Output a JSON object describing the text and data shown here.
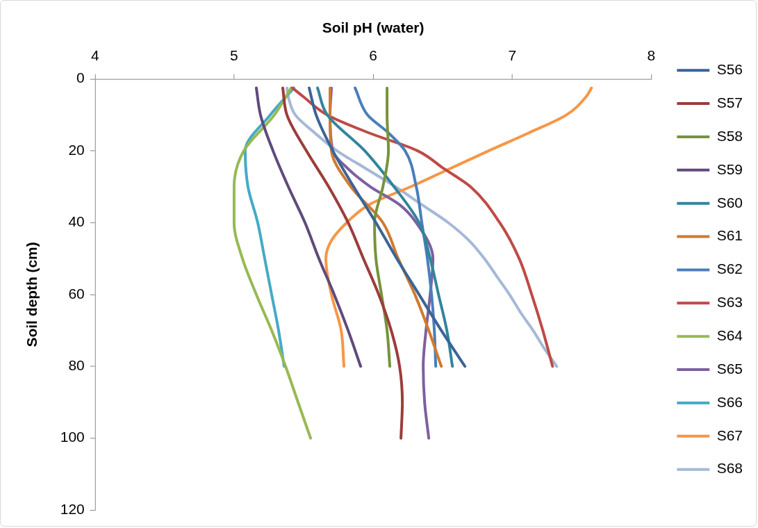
{
  "chart_data": {
    "type": "line",
    "xlabel": "Soil pH (water)",
    "ylabel": "Soil depth (cm)",
    "xlim": [
      4,
      8
    ],
    "xticks": [
      4,
      5,
      6,
      7,
      8
    ],
    "ylim": [
      120,
      0
    ],
    "yticks": [
      0,
      20,
      40,
      60,
      80,
      100,
      120
    ],
    "legend": "right",
    "series": [
      {
        "name": "S56",
        "color": "#3b6496",
        "x": [
          5.54,
          5.59,
          5.71,
          5.86,
          6.02,
          6.17,
          6.33,
          6.49,
          6.66
        ],
        "values": [
          2.5,
          10,
          20,
          30,
          40,
          50,
          60,
          70,
          80
        ]
      },
      {
        "name": "S57",
        "color": "#9b3d3a",
        "x": [
          5.35,
          5.38,
          5.52,
          5.68,
          5.82,
          5.93,
          6.04,
          6.13,
          6.19,
          6.21,
          6.2
        ],
        "values": [
          2.5,
          10,
          20,
          30,
          40,
          50,
          60,
          70,
          80,
          90,
          100
        ]
      },
      {
        "name": "S58",
        "color": "#77933c",
        "x": [
          6.1,
          6.1,
          6.11,
          6.07,
          6.01,
          6.02,
          6.06,
          6.1,
          6.12
        ],
        "values": [
          2.5,
          10,
          20,
          30,
          40,
          50,
          60,
          70,
          80
        ]
      },
      {
        "name": "S59",
        "color": "#604a7b",
        "x": [
          5.16,
          5.19,
          5.28,
          5.39,
          5.51,
          5.61,
          5.72,
          5.82,
          5.91
        ],
        "values": [
          2.5,
          10,
          20,
          30,
          40,
          50,
          60,
          70,
          80
        ]
      },
      {
        "name": "S60",
        "color": "#31859c",
        "x": [
          5.6,
          5.67,
          5.94,
          6.15,
          6.33,
          6.41,
          6.47,
          6.53,
          6.57
        ],
        "values": [
          2.5,
          10,
          20,
          30,
          40,
          50,
          60,
          70,
          80
        ]
      },
      {
        "name": "S61",
        "color": "#d07a30",
        "x": [
          5.69,
          5.69,
          5.7,
          5.84,
          6.07,
          6.18,
          6.3,
          6.4,
          6.49
        ],
        "values": [
          2.5,
          10,
          20,
          30,
          40,
          50,
          60,
          70,
          80
        ]
      },
      {
        "name": "S62",
        "color": "#4a7ebb",
        "x": [
          5.87,
          5.96,
          6.11,
          6.23,
          6.31,
          6.35,
          6.39,
          6.42,
          6.44,
          6.45
        ],
        "values": [
          2.5,
          10,
          15,
          20,
          30,
          40,
          50,
          60,
          70,
          80
        ]
      },
      {
        "name": "S63",
        "color": "#be4b48",
        "x": [
          5.42,
          5.5,
          5.67,
          5.97,
          6.32,
          6.51,
          6.7,
          6.91,
          7.05,
          7.14,
          7.22,
          7.29
        ],
        "values": [
          2.5,
          5,
          10,
          15,
          20,
          25,
          30,
          40,
          50,
          60,
          70,
          80
        ]
      },
      {
        "name": "S64",
        "color": "#98b954",
        "x": [
          5.41,
          5.29,
          5.07,
          5.0,
          5.0,
          5.06,
          5.16,
          5.27,
          5.37,
          5.46,
          5.55
        ],
        "values": [
          2.5,
          10,
          20,
          30,
          40,
          50,
          60,
          70,
          80,
          90,
          100
        ]
      },
      {
        "name": "S65",
        "color": "#7d60a0",
        "x": [
          5.7,
          5.69,
          5.71,
          5.82,
          5.98,
          6.19,
          6.31,
          6.43,
          6.41,
          6.38,
          6.36,
          6.37,
          6.4
        ],
        "values": [
          2.5,
          10,
          20,
          25,
          30,
          35,
          40,
          50,
          60,
          70,
          80,
          90,
          100
        ]
      },
      {
        "name": "S66",
        "color": "#46aac5",
        "x": [
          5.43,
          5.26,
          5.08,
          5.1,
          5.17,
          5.22,
          5.27,
          5.32,
          5.36
        ],
        "values": [
          2.5,
          10,
          20,
          30,
          40,
          50,
          60,
          70,
          80
        ]
      },
      {
        "name": "S67",
        "color": "#f79646",
        "x": [
          7.57,
          7.53,
          7.39,
          7.12,
          6.83,
          6.55,
          6.27,
          5.97,
          5.81,
          5.7,
          5.66,
          5.7,
          5.77,
          5.79
        ],
        "values": [
          2.5,
          5,
          10,
          15,
          20,
          25,
          30,
          35,
          40,
          45,
          50,
          60,
          70,
          80
        ]
      },
      {
        "name": "S68",
        "color": "#a5b8d7",
        "x": [
          5.38,
          5.39,
          5.44,
          5.58,
          5.74,
          5.95,
          6.16,
          6.35,
          6.54,
          6.69,
          6.8,
          6.89,
          6.98,
          7.06,
          7.15,
          7.23,
          7.32
        ],
        "values": [
          2.5,
          5,
          10,
          15,
          20,
          25,
          30,
          35,
          40,
          45,
          50,
          55,
          60,
          65,
          70,
          75,
          80
        ]
      }
    ]
  }
}
